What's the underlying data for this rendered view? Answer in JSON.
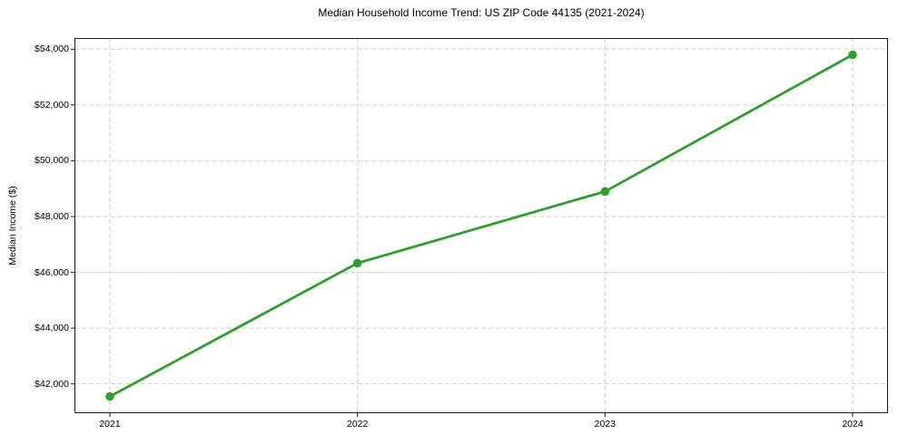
{
  "figure": {
    "background": "#ffffff"
  },
  "chart_data": {
    "type": "line",
    "title": "Median Household Income Trend: US ZIP Code 44135 (2021-2024)",
    "xlabel": "",
    "ylabel": "Median Income ($)",
    "x_tick_labels": [
      "2021",
      "2022",
      "2023",
      "2024"
    ],
    "series": [
      {
        "name": "median-income",
        "values": [
          41550,
          46330,
          48900,
          53800
        ],
        "color": "#2ca02c",
        "marker": "circle"
      }
    ],
    "ylim": [
      40950,
      54400
    ],
    "yticks": [
      42000,
      44000,
      46000,
      48000,
      50000,
      52000,
      54000
    ],
    "y_tick_labels": [
      "$42,000",
      "$44,000",
      "$46,000",
      "$48,000",
      "$50,000",
      "$52,000",
      "$54,000"
    ],
    "grid": true,
    "grid_style": "dashed",
    "grid_color": "#cdcdcd",
    "spine_color": "#1a1a1a",
    "legend": false
  }
}
